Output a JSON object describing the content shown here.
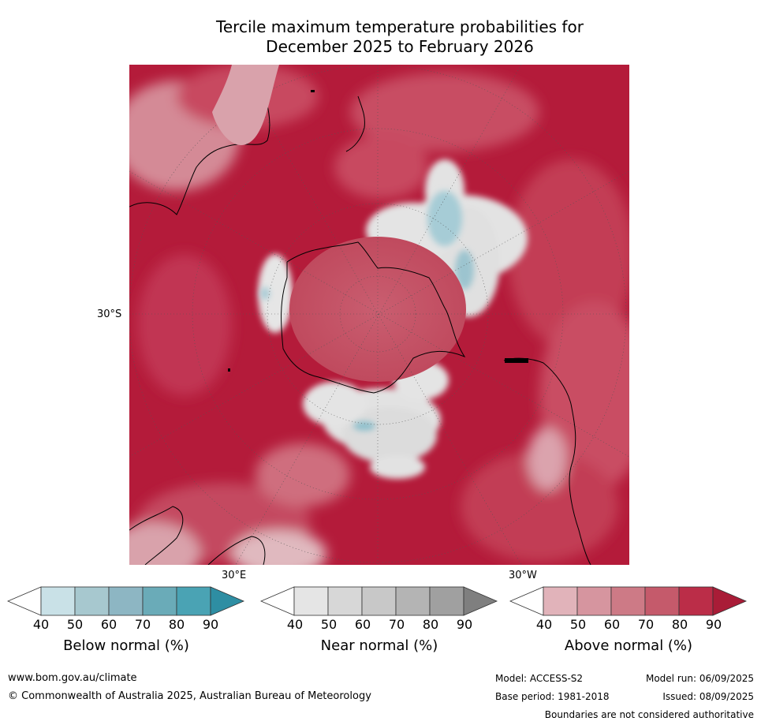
{
  "title_line1": "Tercile maximum temperature probabilities for",
  "title_line2": "December 2025 to February 2026",
  "map": {
    "lat_label": "30°S",
    "lon_label_east": "30°E",
    "lon_label_west": "30°W",
    "colors": {
      "above_dark": "#b41b3a",
      "above_mid": "#c33a52",
      "above_light": "#d98a98",
      "near": "#e5e5e5",
      "below": "#a8cbd5",
      "land_line": "#000000"
    }
  },
  "legend": {
    "ticks": [
      "40",
      "50",
      "60",
      "70",
      "80",
      "90"
    ],
    "below": {
      "title": "Below normal (%)",
      "colors": [
        "#ffffff",
        "#c9e1e7",
        "#a7c8cf",
        "#8db6c3",
        "#6aabb8",
        "#4aa3b4",
        "#2e8ea3"
      ]
    },
    "near": {
      "title": "Near normal (%)",
      "colors": [
        "#ffffff",
        "#e5e5e5",
        "#d7d7d7",
        "#c8c8c8",
        "#b4b4b4",
        "#a0a0a0",
        "#7f7f7f"
      ]
    },
    "above": {
      "title": "Above normal (%)",
      "colors": [
        "#ffffff",
        "#e1b3ba",
        "#d6959f",
        "#cd7a86",
        "#c55a6b",
        "#bb2d48",
        "#a91c37"
      ]
    }
  },
  "footer": {
    "website": "www.bom.gov.au/climate",
    "copyright": "© Commonwealth of Australia 2025, Australian Bureau of Meteorology",
    "model": "Model: ACCESS-S2",
    "base_period": "Base period: 1981-2018",
    "model_run": "Model run: 06/09/2025",
    "issued": "Issued: 08/09/2025",
    "disclaimer": "Boundaries are not considered authoritative"
  }
}
